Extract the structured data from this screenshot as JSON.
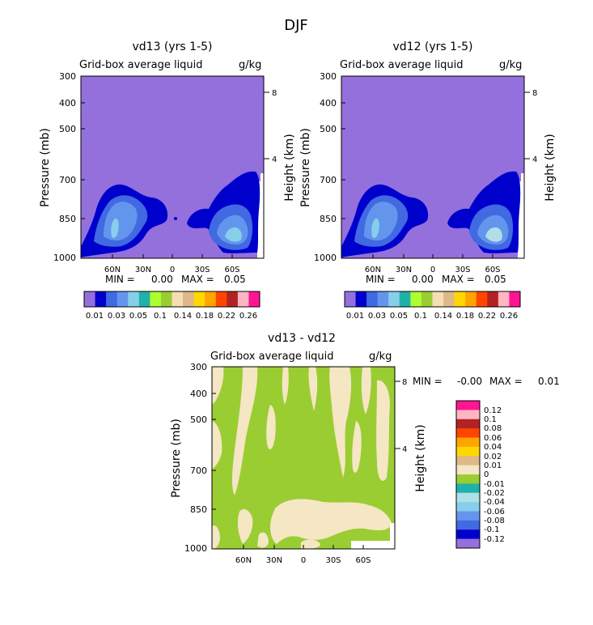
{
  "figure": {
    "title": "DJF"
  },
  "colors": {
    "levels": [
      "#9370db",
      "#0000cd",
      "#4169e1",
      "#6495ed",
      "#87ceeb",
      "#20b2aa",
      "#adff2f",
      "#9acd32",
      "#f5deb3",
      "#deb887",
      "#ffd700",
      "#ffa500",
      "#ff4500",
      "#b22222",
      "#ffb6c1",
      "#ff1493"
    ],
    "diff_levels": [
      "#9370db",
      "#0000cd",
      "#4169e1",
      "#6495ed",
      "#87ceeb",
      "#b0e0e6",
      "#20b2aa",
      "#9acd32",
      "#f5e6c4",
      "#deb887",
      "#ffd700",
      "#ffa500",
      "#ff4500",
      "#b22222",
      "#ffb6c1",
      "#ff1493"
    ]
  },
  "chart_data": [
    {
      "type": "contour",
      "title": "vd13 (yrs 1-5)",
      "subtitle": "Grid-box average liquid",
      "units": "g/kg",
      "ylabel": "Pressure (mb)",
      "y2label": "Height (km)",
      "yticks": [
        "300",
        "400",
        "500",
        "700",
        "850",
        "1000"
      ],
      "y2ticks": [
        "8",
        "4"
      ],
      "xticks": [
        "60N",
        "30N",
        "0",
        "30S",
        "60S"
      ],
      "min_label": "MIN =",
      "min_value": "0.00",
      "max_label": "MAX =",
      "max_value": "0.05",
      "colorbar_labels": [
        "0.01",
        "0.03",
        "0.05",
        "0.1",
        "0.14",
        "0.18",
        "0.22",
        "0.26"
      ]
    },
    {
      "type": "contour",
      "title": "vd12 (yrs 1-5)",
      "subtitle": "Grid-box average liquid",
      "units": "g/kg",
      "ylabel": "Pressure (mb)",
      "y2label": "Height (km)",
      "yticks": [
        "300",
        "400",
        "500",
        "700",
        "850",
        "1000"
      ],
      "y2ticks": [
        "8",
        "4"
      ],
      "xticks": [
        "60N",
        "30N",
        "0",
        "30S",
        "60S"
      ],
      "min_label": "MIN =",
      "min_value": "0.00",
      "max_label": "MAX =",
      "max_value": "0.05",
      "colorbar_labels": [
        "0.01",
        "0.03",
        "0.05",
        "0.1",
        "0.14",
        "0.18",
        "0.22",
        "0.26"
      ]
    },
    {
      "type": "contour",
      "title": "vd13 - vd12",
      "subtitle": "Grid-box average liquid",
      "units": "g/kg",
      "ylabel": "Pressure (mb)",
      "y2label": "Height (km)",
      "yticks": [
        "300",
        "400",
        "500",
        "700",
        "850",
        "1000"
      ],
      "y2ticks": [
        "8",
        "4"
      ],
      "xticks": [
        "60N",
        "30N",
        "0",
        "30S",
        "60S"
      ],
      "min_label": "MIN =",
      "min_value": "-0.00",
      "max_label": "MAX =",
      "max_value": "0.01",
      "colorbar_labels": [
        "0.12",
        "0.1",
        "0.08",
        "0.06",
        "0.04",
        "0.02",
        "0.01",
        "0",
        "-0.01",
        "-0.02",
        "-0.04",
        "-0.06",
        "-0.08",
        "-0.1",
        "-0.12"
      ]
    }
  ]
}
